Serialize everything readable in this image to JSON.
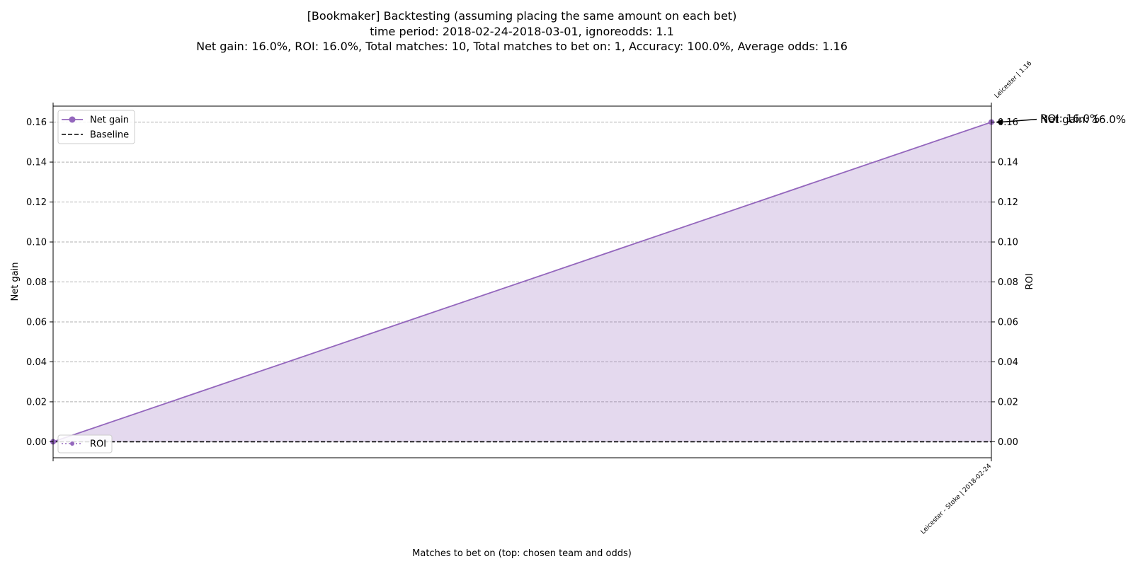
{
  "chart_data": {
    "type": "line",
    "title_lines": [
      "[Bookmaker] Backtesting  (assuming placing the same amount on each bet)",
      "time period: 2018-02-24-2018-03-01, ignoreodds: 1.1",
      "Net gain: 16.0%, ROI: 16.0%, Total matches: 10, Total matches to bet on: 1, Accuracy: 100.0%, Average odds: 1.16"
    ],
    "xlabel": "Matches to bet on (top: chosen team and odds)",
    "ylabel_left": "Net gain",
    "ylabel_right": "ROI",
    "ylim": [
      -0.008,
      0.168
    ],
    "yticks": [
      "0.00",
      "0.02",
      "0.04",
      "0.06",
      "0.08",
      "0.10",
      "0.12",
      "0.14",
      "0.16"
    ],
    "grid": true,
    "x": [
      0,
      1
    ],
    "xtick_labels_bottom": [
      "",
      "Leicester - Stoke | 2018-02-24"
    ],
    "xtick_labels_top": [
      "",
      "Leicester | 1.16"
    ],
    "series": [
      {
        "name": "Net gain",
        "values": [
          0.0,
          0.16
        ],
        "color": "#9467bd",
        "style": "solid",
        "fill": true,
        "axis": "left"
      },
      {
        "name": "Baseline",
        "values": [
          0.0,
          0.0
        ],
        "color": "#000000",
        "style": "dashed",
        "axis": "left"
      },
      {
        "name": "ROI",
        "values": [
          0.0,
          0.16
        ],
        "color": "#9467bd",
        "style": "dotted",
        "axis": "right"
      }
    ],
    "legend_left_placement": "upper-left",
    "legend_right_placement": "lower-left",
    "annotations": [
      "ROI: 16.0%",
      "Net gain: 16.0%"
    ]
  }
}
